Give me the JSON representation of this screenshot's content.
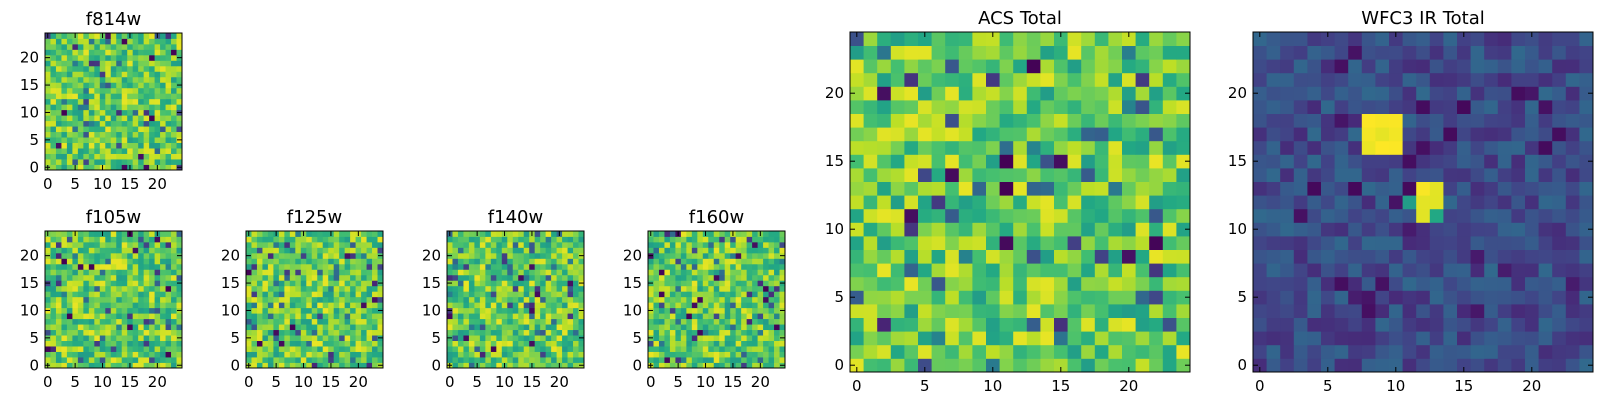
{
  "chart_data": [
    {
      "type": "heatmap",
      "title": "f814w",
      "grid_size": [
        25,
        25
      ],
      "xlim": [
        -0.5,
        24.5
      ],
      "ylim": [
        -0.5,
        24.5
      ],
      "xticks": [
        0,
        5,
        10,
        15,
        20
      ],
      "yticks": [
        0,
        5,
        10,
        15,
        20
      ],
      "colormap": "viridis",
      "value_range": [
        0,
        1
      ],
      "value_description": "mostly 0.55–0.95 noise with scattered low (dark) pixels",
      "values": null,
      "grid": false
    },
    {
      "type": "heatmap",
      "title": "f105w",
      "grid_size": [
        25,
        25
      ],
      "xlim": [
        -0.5,
        24.5
      ],
      "ylim": [
        -0.5,
        24.5
      ],
      "xticks": [
        0,
        5,
        10,
        15,
        20
      ],
      "yticks": [
        0,
        5,
        10,
        15,
        20
      ],
      "colormap": "viridis",
      "value_range": [
        0,
        1
      ],
      "values": null,
      "grid": false
    },
    {
      "type": "heatmap",
      "title": "f125w",
      "grid_size": [
        25,
        25
      ],
      "xlim": [
        -0.5,
        24.5
      ],
      "ylim": [
        -0.5,
        24.5
      ],
      "xticks": [
        0,
        5,
        10,
        15,
        20
      ],
      "yticks": [
        0,
        5,
        10,
        15,
        20
      ],
      "colormap": "viridis",
      "value_range": [
        0,
        1
      ],
      "values": null,
      "grid": false
    },
    {
      "type": "heatmap",
      "title": "f140w",
      "grid_size": [
        25,
        25
      ],
      "xlim": [
        -0.5,
        24.5
      ],
      "ylim": [
        -0.5,
        24.5
      ],
      "xticks": [
        0,
        5,
        10,
        15,
        20
      ],
      "yticks": [
        0,
        5,
        10,
        15,
        20
      ],
      "colormap": "viridis",
      "value_range": [
        0,
        1
      ],
      "values": null,
      "grid": false
    },
    {
      "type": "heatmap",
      "title": "f160w",
      "grid_size": [
        25,
        25
      ],
      "xlim": [
        -0.5,
        24.5
      ],
      "ylim": [
        -0.5,
        24.5
      ],
      "xticks": [
        0,
        5,
        10,
        15,
        20
      ],
      "yticks": [
        0,
        5,
        10,
        15,
        20
      ],
      "colormap": "viridis",
      "value_range": [
        0,
        1
      ],
      "values": null,
      "grid": false
    },
    {
      "type": "heatmap",
      "title": "ACS Total",
      "grid_size": [
        25,
        25
      ],
      "xlim": [
        -0.5,
        24.5
      ],
      "ylim": [
        -0.5,
        24.5
      ],
      "xticks": [
        0,
        5,
        10,
        15,
        20
      ],
      "yticks": [
        0,
        5,
        10,
        15,
        20
      ],
      "colormap": "viridis",
      "value_range": [
        0,
        1
      ],
      "values": null,
      "grid": false
    },
    {
      "type": "heatmap",
      "title": "WFC3 IR Total",
      "grid_size": [
        25,
        25
      ],
      "xlim": [
        -0.5,
        24.5
      ],
      "ylim": [
        -0.5,
        24.5
      ],
      "xticks": [
        0,
        5,
        10,
        15,
        20
      ],
      "yticks": [
        0,
        5,
        10,
        15,
        20
      ],
      "colormap": "viridis",
      "value_range": [
        0,
        1
      ],
      "values": null,
      "grid": false,
      "bright_regions": [
        {
          "x_range": [
            8,
            10
          ],
          "y_range": [
            16,
            18
          ]
        },
        {
          "x_range": [
            12,
            13
          ],
          "y_range": [
            11,
            13
          ]
        }
      ]
    }
  ]
}
